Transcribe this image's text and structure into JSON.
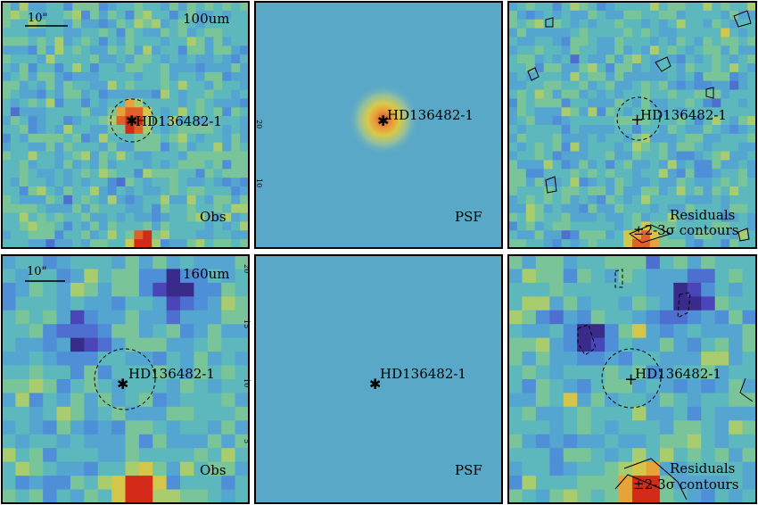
{
  "figure": {
    "rows": [
      {
        "band": "100um",
        "scalebar": "10\"",
        "source": "HD136482-1",
        "panels": [
          {
            "label": "Obs",
            "kind": "obs"
          },
          {
            "label": "PSF",
            "kind": "psf"
          },
          {
            "label": "Residuals",
            "label2": "±2-3σ contours",
            "kind": "res"
          }
        ],
        "tick_labels": [
          "20",
          "10"
        ]
      },
      {
        "band": "160um",
        "scalebar": "10\"",
        "source": "HD136482-1",
        "panels": [
          {
            "label": "Obs",
            "kind": "obs"
          },
          {
            "label": "PSF",
            "kind": "psf"
          },
          {
            "label": "Residuals",
            "label2": "±2-3σ contours",
            "kind": "res"
          }
        ],
        "tick_labels": [
          "20",
          "15",
          "10",
          "5"
        ]
      }
    ],
    "colors": {
      "background": "#5aa8c8",
      "frame": "#000000"
    }
  }
}
